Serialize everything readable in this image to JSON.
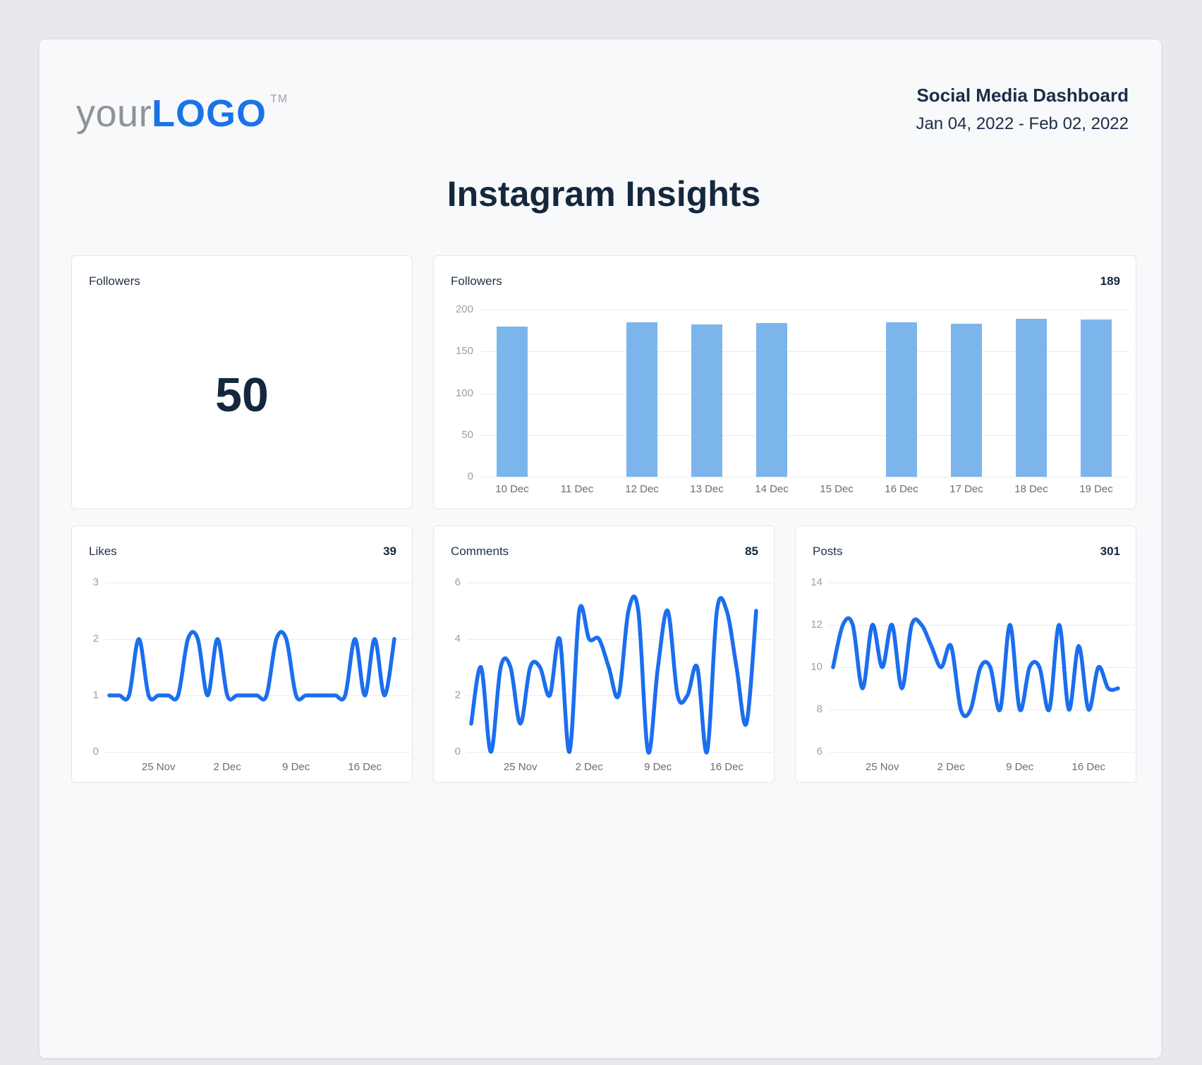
{
  "header": {
    "logo": {
      "your": "your",
      "logo": "LOGO",
      "tm": "TM"
    },
    "title": "Social Media Dashboard",
    "date_range": "Jan 04, 2022 - Feb 02, 2022"
  },
  "page_title": "Instagram Insights",
  "summary_card": {
    "label": "Followers",
    "value": "50"
  },
  "colors": {
    "logo_blue": "#1a73e8",
    "bar_blue": "#7cb5ec",
    "line_blue": "#1b6eee",
    "navy_text": "#14273d"
  },
  "chart_data": [
    {
      "id": "followers_bar",
      "type": "bar",
      "title": "Followers",
      "header_value": "189",
      "categories": [
        "10 Dec",
        "11 Dec",
        "12 Dec",
        "13 Dec",
        "14 Dec",
        "15 Dec",
        "16 Dec",
        "17 Dec",
        "18 Dec",
        "19 Dec"
      ],
      "values": [
        180,
        0,
        185,
        182,
        184,
        0,
        185,
        183,
        189,
        188
      ],
      "ylim": [
        0,
        200
      ],
      "yticks": [
        200,
        150,
        100,
        50,
        0
      ],
      "grid": true,
      "legend": false
    },
    {
      "id": "likes",
      "type": "line",
      "title": "Likes",
      "header_value": "39",
      "values": [
        1,
        1,
        1,
        2,
        1,
        1,
        1,
        1,
        2,
        2,
        1,
        2,
        1,
        1,
        1,
        1,
        1,
        2,
        2,
        1,
        1,
        1,
        1,
        1,
        1,
        2,
        1,
        2,
        1,
        2
      ],
      "ylim": [
        0,
        3
      ],
      "yticks": [
        3,
        2,
        1,
        0
      ],
      "x_tick_labels": [
        "25 Nov",
        "2 Dec",
        "9 Dec",
        "16 Dec"
      ],
      "x_tick_indices": [
        5,
        12,
        19,
        26
      ],
      "grid": true,
      "legend": false
    },
    {
      "id": "comments",
      "type": "line",
      "title": "Comments",
      "header_value": "85",
      "values": [
        1,
        3,
        0,
        3,
        3,
        1,
        3,
        3,
        2,
        4,
        0,
        5,
        4,
        4,
        3,
        2,
        5,
        5,
        0,
        3,
        5,
        2,
        2,
        3,
        0,
        5,
        5,
        3,
        1,
        5
      ],
      "ylim": [
        0,
        6
      ],
      "yticks": [
        6,
        4,
        2,
        0
      ],
      "x_tick_labels": [
        "25 Nov",
        "2 Dec",
        "9 Dec",
        "16 Dec"
      ],
      "x_tick_indices": [
        5,
        12,
        19,
        26
      ],
      "grid": true,
      "legend": false
    },
    {
      "id": "posts",
      "type": "line",
      "title": "Posts",
      "header_value": "301",
      "values": [
        10,
        12,
        12,
        9,
        12,
        10,
        12,
        9,
        12,
        12,
        11,
        10,
        11,
        8,
        8,
        10,
        10,
        8,
        12,
        8,
        10,
        10,
        8,
        12,
        8,
        11,
        8,
        10,
        9,
        9
      ],
      "ylim": [
        6,
        14
      ],
      "yticks": [
        14,
        12,
        10,
        8,
        6
      ],
      "x_tick_labels": [
        "25 Nov",
        "2 Dec",
        "9 Dec",
        "16 Dec"
      ],
      "x_tick_indices": [
        5,
        12,
        19,
        26
      ],
      "grid": true,
      "legend": false
    }
  ]
}
